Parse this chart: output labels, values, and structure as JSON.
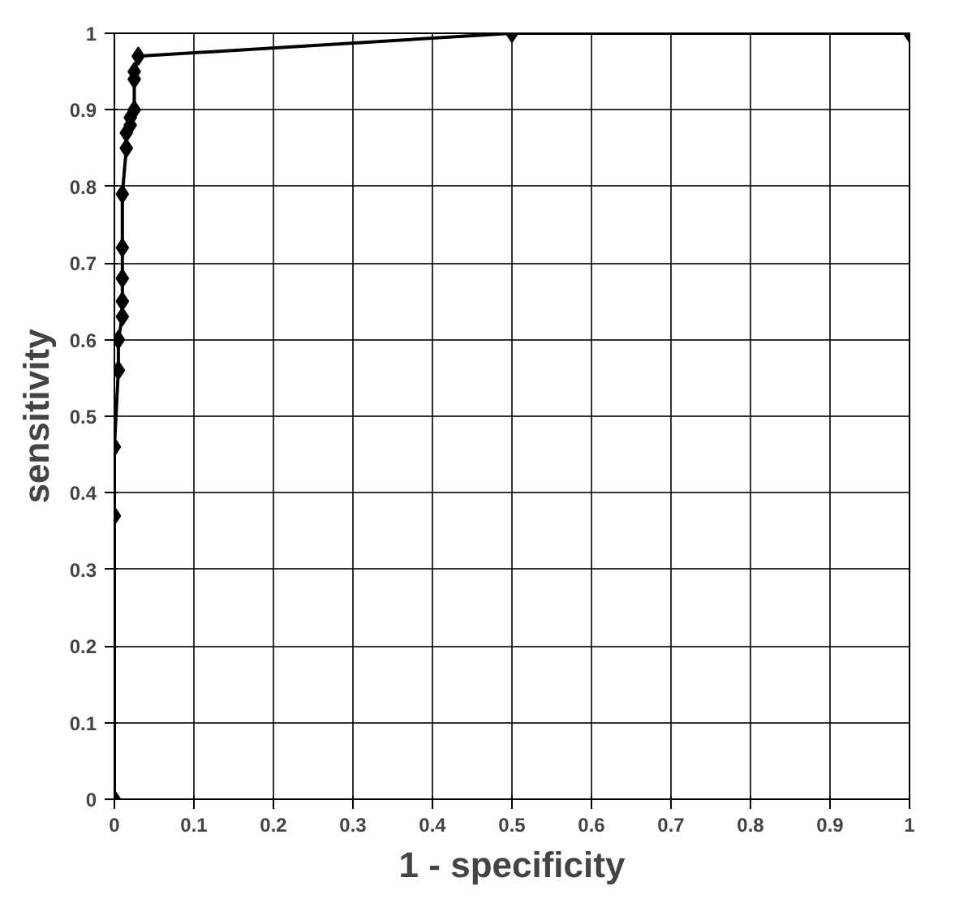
{
  "chart_data": {
    "type": "line",
    "xlabel": "1 - specificity",
    "ylabel": "sensitivity",
    "x": [
      0,
      0,
      0,
      0.005,
      0.005,
      0.01,
      0.01,
      0.01,
      0.01,
      0.01,
      0.015,
      0.015,
      0.02,
      0.02,
      0.025,
      0.025,
      0.025,
      0.03,
      0.5,
      1
    ],
    "series": [
      {
        "color": "#000000",
        "values": [
          0,
          0.37,
          0.46,
          0.56,
          0.6,
          0.63,
          0.65,
          0.68,
          0.72,
          0.79,
          0.85,
          0.87,
          0.88,
          0.89,
          0.9,
          0.94,
          0.95,
          0.97,
          1,
          1
        ]
      }
    ],
    "xlim": [
      0,
      1
    ],
    "ylim": [
      0,
      1
    ],
    "xticks": [
      0,
      0.1,
      0.2,
      0.3,
      0.4,
      0.5,
      0.6,
      0.7,
      0.8,
      0.9,
      1
    ],
    "yticks": [
      0,
      0.1,
      0.2,
      0.3,
      0.4,
      0.5,
      0.6,
      0.7,
      0.8,
      0.9,
      1
    ],
    "grid": true,
    "marker": "diamond",
    "line_style": "solid"
  }
}
